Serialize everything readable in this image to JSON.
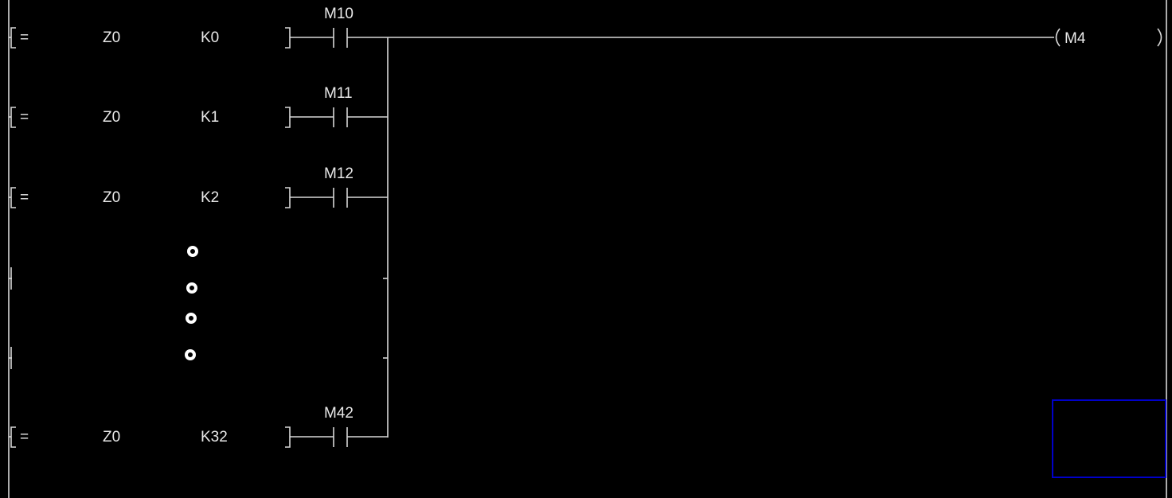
{
  "rungs": [
    {
      "operator": "=",
      "operand1": "Z0",
      "operand2": "K0",
      "contact": "M10"
    },
    {
      "operator": "=",
      "operand1": "Z0",
      "operand2": "K1",
      "contact": "M11"
    },
    {
      "operator": "=",
      "operand1": "Z0",
      "operand2": "K2",
      "contact": "M12"
    },
    {
      "operator": "=",
      "operand1": "Z0",
      "operand2": "K32",
      "contact": "M42"
    }
  ],
  "coil": {
    "label": "M4"
  },
  "colors": {
    "background": "#000000",
    "lines": "#d8d8d8",
    "cursor": "#0000c8"
  }
}
